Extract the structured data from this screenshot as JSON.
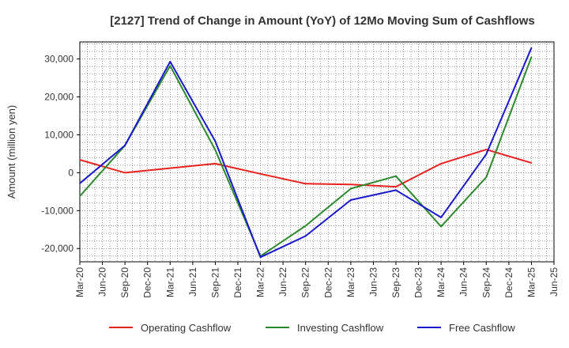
{
  "chart_data": {
    "type": "line",
    "title": "[2127]  Trend of Change in Amount (YoY) of 12Mo Moving Sum of Cashflows",
    "xlabel": "",
    "ylabel": "Amount (million yen)",
    "ylim": [
      -23500,
      34500
    ],
    "yticks": [
      -20000,
      -10000,
      0,
      10000,
      20000,
      30000
    ],
    "ytick_labels": [
      "-20,000",
      "-10,000",
      "0",
      "10,000",
      "20,000",
      "30,000"
    ],
    "x_ticks": [
      "Mar-20",
      "Jun-20",
      "Sep-20",
      "Dec-20",
      "Mar-21",
      "Jun-21",
      "Sep-21",
      "Dec-21",
      "Mar-22",
      "Jun-22",
      "Sep-22",
      "Dec-22",
      "Mar-23",
      "Jun-23",
      "Sep-23",
      "Dec-23",
      "Mar-24",
      "Jun-24",
      "Sep-24",
      "Dec-24",
      "Mar-25",
      "Jun-25"
    ],
    "grid": true,
    "legend_position": "bottom",
    "series": [
      {
        "name": "Operating Cashflow",
        "color": "#e8211d",
        "points": [
          {
            "x": "Mar-20",
            "y": 3400
          },
          {
            "x": "Sep-20",
            "y": 0
          },
          {
            "x": "Sep-21",
            "y": 2400
          },
          {
            "x": "Mar-22",
            "y": -300
          },
          {
            "x": "Sep-22",
            "y": -2900
          },
          {
            "x": "Mar-23",
            "y": -3100
          },
          {
            "x": "Sep-23",
            "y": -3700
          },
          {
            "x": "Mar-24",
            "y": 2400
          },
          {
            "x": "Sep-24",
            "y": 6100
          },
          {
            "x": "Mar-25",
            "y": 2600
          }
        ]
      },
      {
        "name": "Investing Cashflow",
        "color": "#2c8a2c",
        "points": [
          {
            "x": "Mar-20",
            "y": -6200
          },
          {
            "x": "Sep-20",
            "y": 7200
          },
          {
            "x": "Mar-21",
            "y": 28200
          },
          {
            "x": "Sep-21",
            "y": 6000
          },
          {
            "x": "Mar-22",
            "y": -22000
          },
          {
            "x": "Sep-22",
            "y": -14000
          },
          {
            "x": "Mar-23",
            "y": -4200
          },
          {
            "x": "Sep-23",
            "y": -900
          },
          {
            "x": "Mar-24",
            "y": -14200
          },
          {
            "x": "Sep-24",
            "y": -1200
          },
          {
            "x": "Mar-25",
            "y": 30500
          }
        ]
      },
      {
        "name": "Free Cashflow",
        "color": "#1a1acb",
        "points": [
          {
            "x": "Mar-20",
            "y": -2800
          },
          {
            "x": "Sep-20",
            "y": 7200
          },
          {
            "x": "Mar-21",
            "y": 29300
          },
          {
            "x": "Sep-21",
            "y": 8300
          },
          {
            "x": "Mar-22",
            "y": -22300
          },
          {
            "x": "Sep-22",
            "y": -16700
          },
          {
            "x": "Mar-23",
            "y": -7200
          },
          {
            "x": "Sep-23",
            "y": -4600
          },
          {
            "x": "Mar-24",
            "y": -11800
          },
          {
            "x": "Sep-24",
            "y": 4900
          },
          {
            "x": "Mar-25",
            "y": 32900
          }
        ]
      }
    ]
  }
}
